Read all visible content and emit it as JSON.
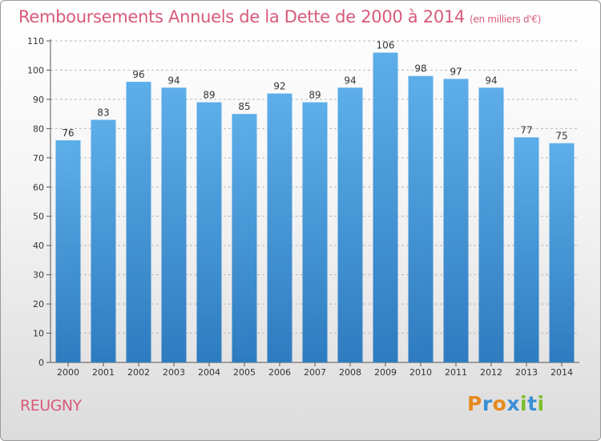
{
  "title": "Remboursements Annuels de la Dette de 2000 à 2014",
  "unit_note": "(en milliers d'€)",
  "commune": "REUGNY",
  "logo": {
    "text": "Proxiti",
    "letters": [
      "P",
      "r",
      "o",
      "x",
      "i",
      "t",
      "i"
    ],
    "colors": [
      "#e8891e",
      "#3a8fd6",
      "#e8891e",
      "#3a8fd6",
      "#7bbd2a",
      "#3a8fd6",
      "#7bbd2a"
    ]
  },
  "colors": {
    "bar_top": "#5daee9",
    "bar_bottom": "#2e7cc0",
    "title": "#d85a7a"
  },
  "chart_data": {
    "type": "bar",
    "title": "Remboursements Annuels de la Dette de 2000 à 2014",
    "subtitle": "(en milliers d'€)",
    "categories": [
      "2000",
      "2001",
      "2002",
      "2003",
      "2004",
      "2005",
      "2006",
      "2007",
      "2008",
      "2009",
      "2010",
      "2011",
      "2012",
      "2013",
      "2014"
    ],
    "values": [
      76,
      83,
      96,
      94,
      89,
      85,
      92,
      89,
      94,
      106,
      98,
      97,
      94,
      77,
      75
    ],
    "ylim": [
      0,
      110
    ],
    "yticks": [
      0,
      10,
      20,
      30,
      40,
      50,
      60,
      70,
      80,
      90,
      100,
      110
    ],
    "grid": "horizontal-dashed",
    "data_labels": true,
    "legend": "none"
  }
}
